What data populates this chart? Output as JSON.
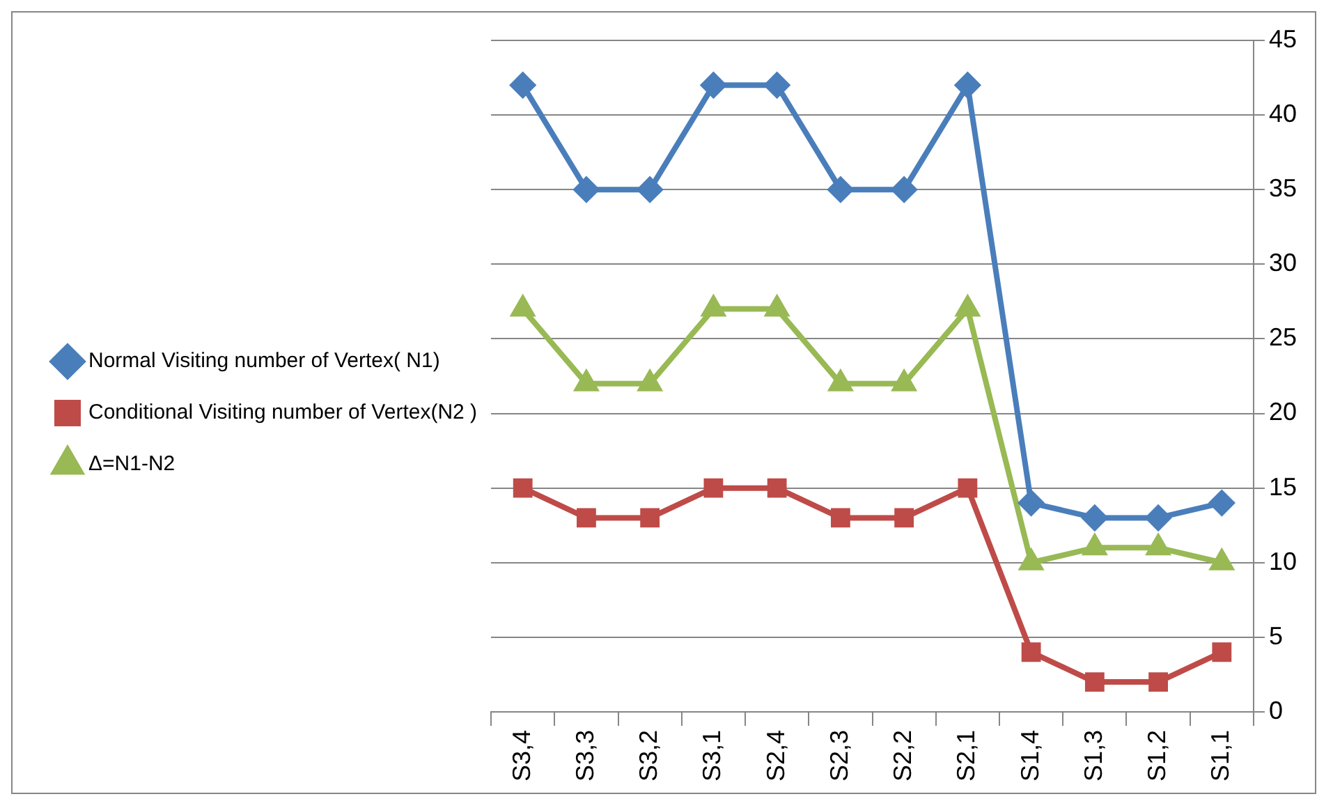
{
  "chart_data": {
    "type": "line",
    "categories": [
      "S3,4",
      "S3,3",
      "S3,2",
      "S3,1",
      "S2,4",
      "S2,3",
      "S2,2",
      "S2,1",
      "S1,4",
      "S1,3",
      "S1,2",
      "S1,1"
    ],
    "series": [
      {
        "name": "Normal Visiting number of Vertex( N1)",
        "color": "#4a7ebb",
        "marker": "diamond",
        "values": [
          42,
          35,
          35,
          42,
          42,
          35,
          35,
          42,
          14,
          13,
          13,
          14
        ]
      },
      {
        "name": "Conditional Visiting number of Vertex(N2 )",
        "color": "#be4b48",
        "marker": "square",
        "values": [
          15,
          13,
          13,
          15,
          15,
          13,
          13,
          15,
          4,
          2,
          2,
          4
        ]
      },
      {
        "name": "Δ=N1-N2",
        "color": "#98b954",
        "marker": "triangle",
        "values": [
          27,
          22,
          22,
          27,
          27,
          22,
          22,
          27,
          10,
          11,
          11,
          10
        ]
      }
    ],
    "ylim": [
      0,
      45
    ],
    "yticks": [
      0,
      5,
      10,
      15,
      20,
      25,
      30,
      35,
      40,
      45
    ],
    "grid": "y",
    "legend": "left",
    "line_style": "solid"
  }
}
